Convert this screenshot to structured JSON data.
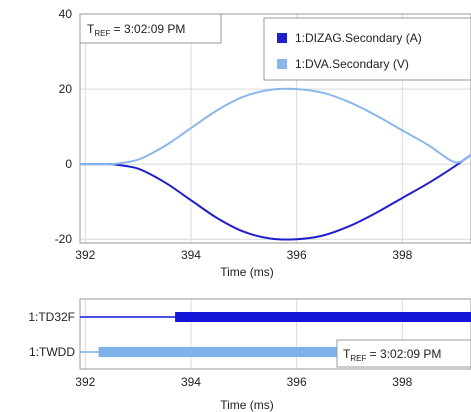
{
  "colors": {
    "series_a": "#1f1fcc",
    "series_v": "#8ab8ec",
    "digital_td32f": "#1414d8",
    "digital_twdd": "#7fb2ea",
    "grid": "#d9d9d9"
  },
  "chart_data": [
    {
      "type": "line",
      "xlabel": "Time (ms)",
      "ylabel": "",
      "xlim": [
        391.9,
        399.3
      ],
      "ylim": [
        -21,
        40
      ],
      "x_ticks": [
        "392",
        "394",
        "396",
        "398"
      ],
      "x_tick_values": [
        392,
        394,
        396,
        398
      ],
      "y_ticks": [
        "40",
        "20",
        "0",
        "-20"
      ],
      "y_tick_values": [
        40,
        20,
        0,
        -20
      ],
      "grid": true,
      "legend_position": "top-right",
      "tref": {
        "label": "T",
        "sub": "REF",
        "text": " = 3:02:09 PM",
        "position": "top-left"
      },
      "series": [
        {
          "name": "1:DIZAG.Secondary (A)",
          "x": [
            391.9,
            392.2,
            392.45,
            392.5,
            393.0,
            393.5,
            394.0,
            394.5,
            395.0,
            395.5,
            396.0,
            396.5,
            397.0,
            397.5,
            398.0,
            398.5,
            399.0,
            399.3
          ],
          "values": [
            0,
            0,
            0,
            0,
            -1.2,
            -4.8,
            -9.6,
            -14.4,
            -18.0,
            -19.8,
            -20.0,
            -19.0,
            -16.5,
            -13.0,
            -9.0,
            -5.0,
            -0.5,
            2.5
          ]
        },
        {
          "name": "1:DVA.Secondary (V)",
          "x": [
            391.9,
            392.2,
            392.45,
            392.5,
            393.0,
            393.5,
            394.0,
            394.5,
            395.0,
            395.5,
            396.0,
            396.5,
            397.0,
            397.5,
            398.0,
            398.5,
            399.0,
            399.3
          ],
          "values": [
            0,
            0,
            0,
            0,
            1.2,
            4.8,
            9.6,
            14.4,
            18.0,
            19.8,
            20.0,
            19.0,
            16.5,
            13.0,
            9.0,
            5.0,
            0.5,
            2.5
          ]
        }
      ]
    },
    {
      "type": "digital",
      "xlabel": "Time (ms)",
      "xlim": [
        391.9,
        399.3
      ],
      "x_ticks": [
        "392",
        "394",
        "396",
        "398"
      ],
      "x_tick_values": [
        392,
        394,
        396,
        398
      ],
      "grid": true,
      "tref": {
        "label": "T",
        "sub": "REF",
        "text": " = 3:02:09 PM",
        "position": "right"
      },
      "channels": [
        {
          "name": "1:TD32F",
          "asserted_from": 393.7,
          "asserted_to": 399.3
        },
        {
          "name": "1:TWDD",
          "asserted_from": 392.25,
          "asserted_to": 396.8
        }
      ]
    }
  ]
}
